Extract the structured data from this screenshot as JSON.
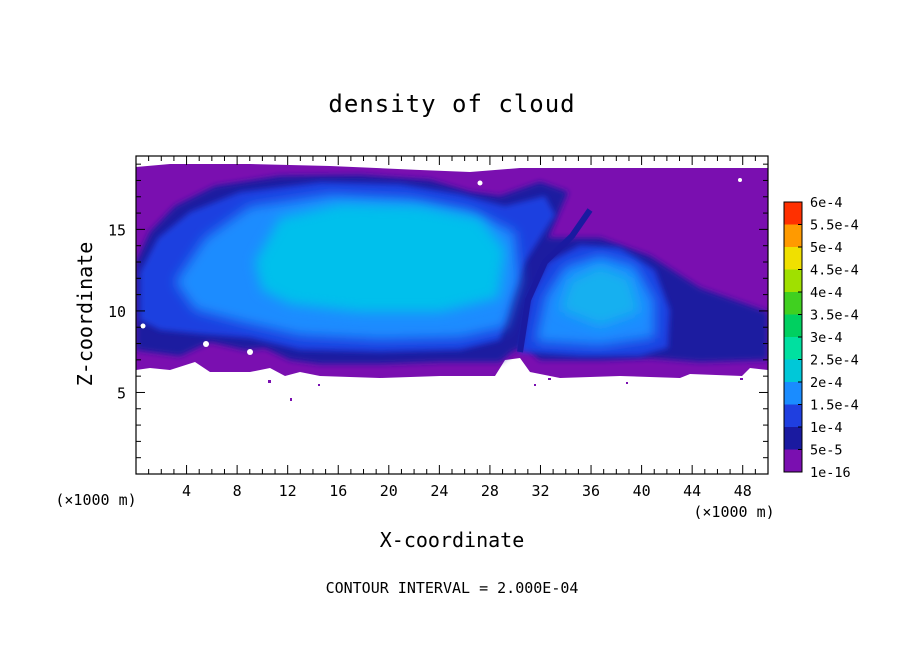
{
  "chart_data": {
    "type": "heatmap",
    "title": "density of cloud",
    "xlabel": "X-coordinate",
    "ylabel": "Z-coordinate",
    "x_unit": "(×1000 m)",
    "y_unit": "(×1000 m)",
    "xlim": [
      0,
      50
    ],
    "ylim": [
      0,
      19.5
    ],
    "x_ticks": [
      4,
      8,
      12,
      16,
      20,
      24,
      28,
      32,
      36,
      40,
      44,
      48
    ],
    "y_ticks": [
      5,
      10,
      15
    ],
    "footer": "CONTOUR INTERVAL = 2.000E-04",
    "colorbar": {
      "labels": [
        "1e-16",
        "5e-5",
        "1e-4",
        "1.5e-4",
        "2e-4",
        "2.5e-4",
        "3e-4",
        "3.5e-4",
        "4e-4",
        "4.5e-4",
        "5e-4",
        "5.5e-4",
        "6e-4"
      ],
      "colors": [
        "#7a0fb0",
        "#1a1aa0",
        "#1f3fe0",
        "#1a8cff",
        "#00c8d8",
        "#00e0a0",
        "#00d060",
        "#40d020",
        "#a0e000",
        "#f0e000",
        "#ff9a00",
        "#ff3000",
        "#f08080"
      ]
    },
    "regions": [
      {
        "name": "main cloud",
        "x_range": [
          0,
          50
        ],
        "z_range": [
          6.3,
          19.3
        ],
        "level": "1e-16 to 5e-5"
      },
      {
        "name": "left anvil core",
        "x_range": [
          3,
          30
        ],
        "z_range": [
          8.3,
          18.2
        ],
        "level": "1e-4 to 1.5e-4"
      },
      {
        "name": "right cell core",
        "x_range": [
          30.5,
          41.5
        ],
        "z_range": [
          7.8,
          14
        ],
        "level": "1e-4 to 1.5e-4"
      }
    ]
  }
}
